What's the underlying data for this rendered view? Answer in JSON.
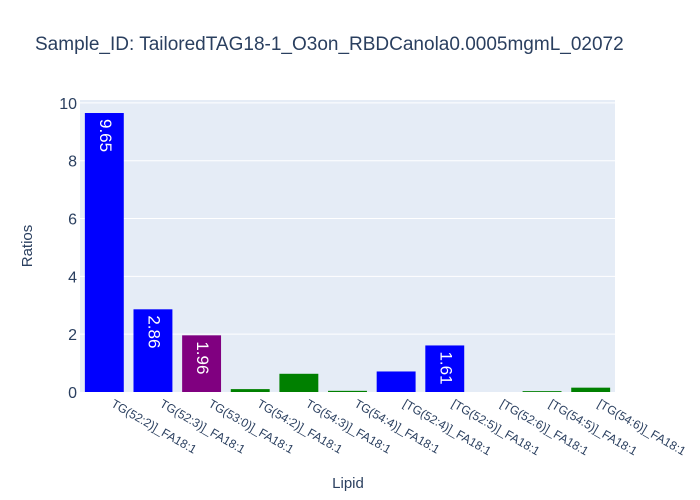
{
  "chart_data": {
    "type": "bar",
    "title": "Sample_ID: TailoredTAG18-1_O3on_RBDCanola0.0005mgmL_02072",
    "xlabel": "Lipid",
    "ylabel": "Ratios",
    "ylim": [
      0,
      10.1
    ],
    "yticks": [
      0,
      2,
      4,
      6,
      8,
      10
    ],
    "grid": true,
    "legend": "none",
    "categories": [
      "TG(52:2)]_FA18:1",
      "TG(52:3)]_FA18:1",
      "TG(53:0)]_FA18:1",
      "TG(54:2)]_FA18:1",
      "TG(54:3)]_FA18:1",
      "TG(54:4)]_FA18:1",
      "[TG(52:4)]_FA18:1",
      "[TG(52:5)]_FA18:1",
      "[TG(52:6)]_FA18:1",
      "[TG(54:5)]_FA18:1",
      "[TG(54:6)]_FA18:1"
    ],
    "values": [
      9.65,
      2.86,
      1.96,
      0.1,
      0.63,
      0.04,
      0.71,
      1.61,
      0.0,
      0.03,
      0.15
    ],
    "data_labels": [
      "9.65",
      "2.86",
      "1.96",
      "",
      "",
      "",
      "",
      "1.61",
      "",
      "",
      ""
    ],
    "colors": [
      "#0000ff",
      "#0000ff",
      "#800080",
      "#008000",
      "#008000",
      "#008000",
      "#0000ff",
      "#0000ff",
      "#0000ff",
      "#008000",
      "#008000"
    ]
  },
  "style": {
    "plot_bg": "#e5ecf6",
    "grid_color": "#ffffff",
    "text_color": "#2a3f5f"
  }
}
